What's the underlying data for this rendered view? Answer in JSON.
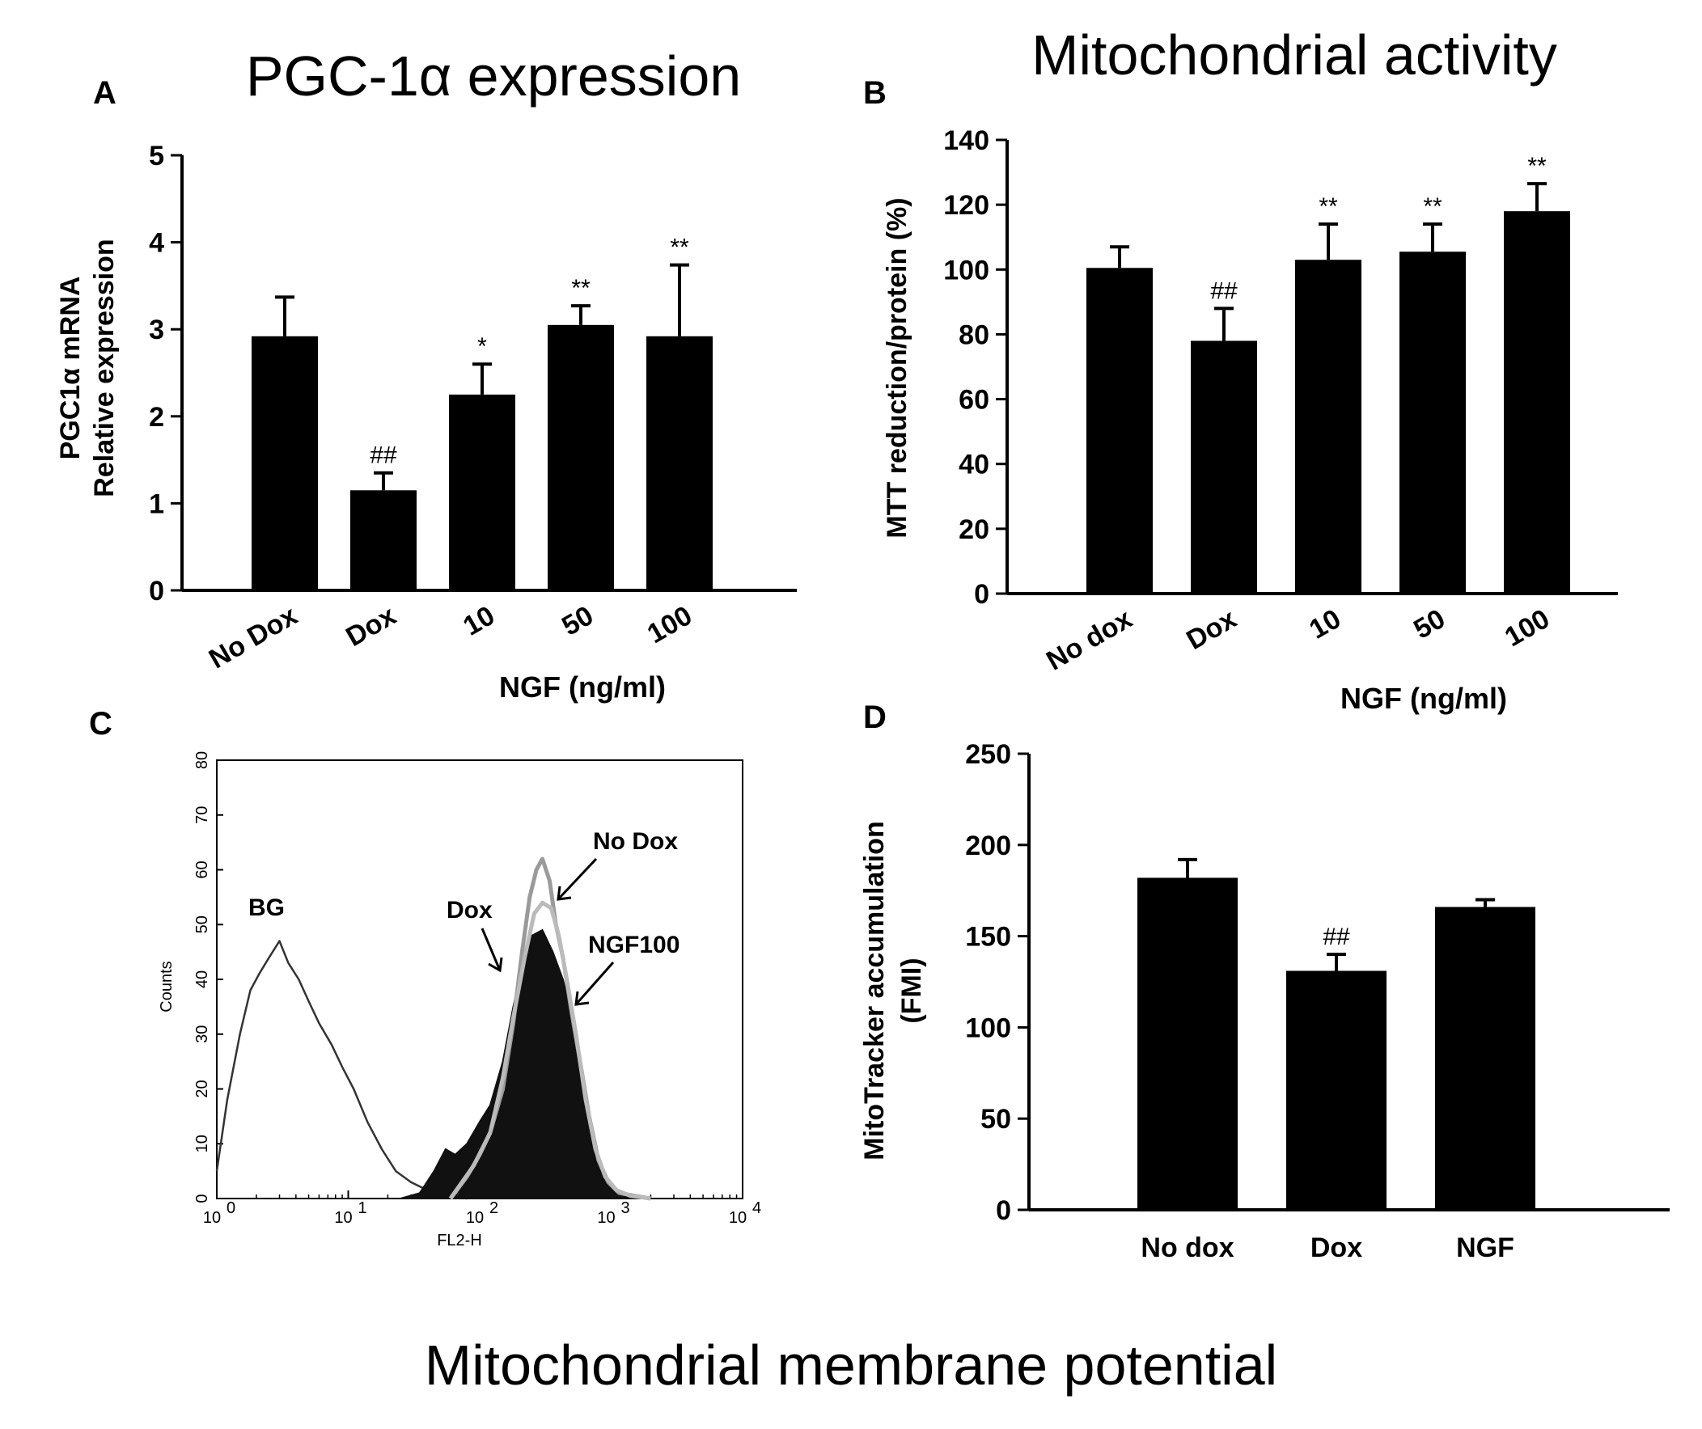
{
  "figure": {
    "footer_title": "Mitochondrial membrane potential"
  },
  "chart_data": [
    {
      "panel": "A",
      "type": "bar",
      "title": "PGC-1α expression",
      "ylabel_lines": [
        "PGC1α mRNA",
        "Relative expression"
      ],
      "xlabel": "NGF (ng/ml)",
      "categories": [
        "No Dox",
        "Dox",
        "10",
        "50",
        "100"
      ],
      "values": [
        2.92,
        1.15,
        2.25,
        3.05,
        2.92
      ],
      "errors": [
        0.45,
        0.2,
        0.35,
        0.22,
        0.82
      ],
      "significance": [
        "",
        "##",
        "*",
        "**",
        "**"
      ],
      "ylim": [
        0,
        5
      ],
      "yticks": [
        0,
        1,
        2,
        3,
        4,
        5
      ],
      "bar_color": "#000000"
    },
    {
      "panel": "B",
      "type": "bar",
      "title": "Mitochondrial activity",
      "ylabel": "MTT reduction/protein (%)",
      "xlabel": "NGF (ng/ml)",
      "categories": [
        "No dox",
        "Dox",
        "10",
        "50",
        "100"
      ],
      "values": [
        100.5,
        78,
        103,
        105.5,
        118
      ],
      "errors": [
        6.5,
        10,
        11,
        8.5,
        8.5
      ],
      "significance": [
        "",
        "##",
        "**",
        "**",
        "**"
      ],
      "ylim": [
        0,
        140
      ],
      "yticks": [
        0,
        20,
        40,
        60,
        80,
        100,
        120,
        140
      ],
      "bar_color": "#000000"
    },
    {
      "panel": "C",
      "type": "histogram",
      "ylabel": "Counts",
      "xlabel": "FL2-H",
      "x_scale": "log",
      "xlim": [
        1,
        10000
      ],
      "ylim": [
        0,
        80
      ],
      "yticks": [
        0,
        10,
        20,
        30,
        40,
        50,
        60,
        70,
        80
      ],
      "xticks": [
        {
          "base": "10",
          "exp": "0"
        },
        {
          "base": "10",
          "exp": "1"
        },
        {
          "base": "10",
          "exp": "2"
        },
        {
          "base": "10",
          "exp": "3"
        },
        {
          "base": "10",
          "exp": "4"
        }
      ],
      "series": [
        {
          "name": "BG",
          "style": "outline",
          "color": "#333333",
          "x": [
            1,
            1.2,
            1.5,
            1.8,
            2.1,
            2.5,
            3,
            3.5,
            4.2,
            5,
            6,
            7.5,
            9,
            11,
            14,
            18,
            23,
            30,
            40,
            55,
            80
          ],
          "y": [
            5,
            18,
            30,
            38,
            41,
            44,
            47,
            43,
            40,
            36,
            32,
            28,
            24,
            20,
            14,
            9,
            5,
            3,
            1.5,
            0.5,
            0
          ]
        },
        {
          "name": "Dox",
          "style": "filled",
          "color": "#111111",
          "x": [
            25,
            35,
            45,
            55,
            65,
            80,
            100,
            120,
            150,
            180,
            210,
            250,
            300,
            360,
            430,
            520,
            620,
            750,
            900,
            1100,
            1400,
            2000
          ],
          "y": [
            0,
            1,
            5,
            9,
            8,
            10,
            14,
            17,
            25,
            35,
            42,
            48,
            49,
            45,
            40,
            32,
            20,
            9,
            4,
            1.5,
            0.5,
            0
          ]
        },
        {
          "name": "No Dox",
          "style": "outline",
          "color": "#9a9a9a",
          "x": [
            60,
            80,
            100,
            120,
            150,
            180,
            210,
            240,
            270,
            300,
            340,
            380,
            430,
            500,
            580,
            680,
            800,
            950,
            1150,
            1500,
            2000
          ],
          "y": [
            0,
            4,
            8,
            12,
            20,
            32,
            45,
            55,
            60,
            62,
            58,
            50,
            44,
            34,
            25,
            15,
            7,
            3,
            1,
            0.5,
            0
          ]
        },
        {
          "name": "NGF100",
          "style": "outline",
          "color": "#bbbbbb",
          "x": [
            60,
            90,
            120,
            150,
            180,
            220,
            260,
            300,
            350,
            400,
            460,
            540,
            640,
            760,
            900,
            1100,
            1400,
            2000
          ],
          "y": [
            0,
            6,
            12,
            22,
            33,
            44,
            52,
            54,
            53,
            48,
            40,
            30,
            18,
            9,
            4,
            1.5,
            0.5,
            0
          ]
        }
      ],
      "annotations": {
        "bg": "BG",
        "dox": "Dox",
        "nodox": "No Dox",
        "ngf100": "NGF100"
      }
    },
    {
      "panel": "D",
      "type": "bar",
      "ylabel_lines": [
        "MitoTracker accumulation",
        "(FMI)"
      ],
      "categories": [
        "No dox",
        "Dox",
        "NGF"
      ],
      "values": [
        182,
        131,
        166
      ],
      "errors": [
        10,
        9,
        4
      ],
      "significance": [
        "",
        "##",
        ""
      ],
      "ylim": [
        0,
        250
      ],
      "yticks": [
        0,
        50,
        100,
        150,
        200,
        250
      ],
      "bar_color": "#000000"
    }
  ]
}
